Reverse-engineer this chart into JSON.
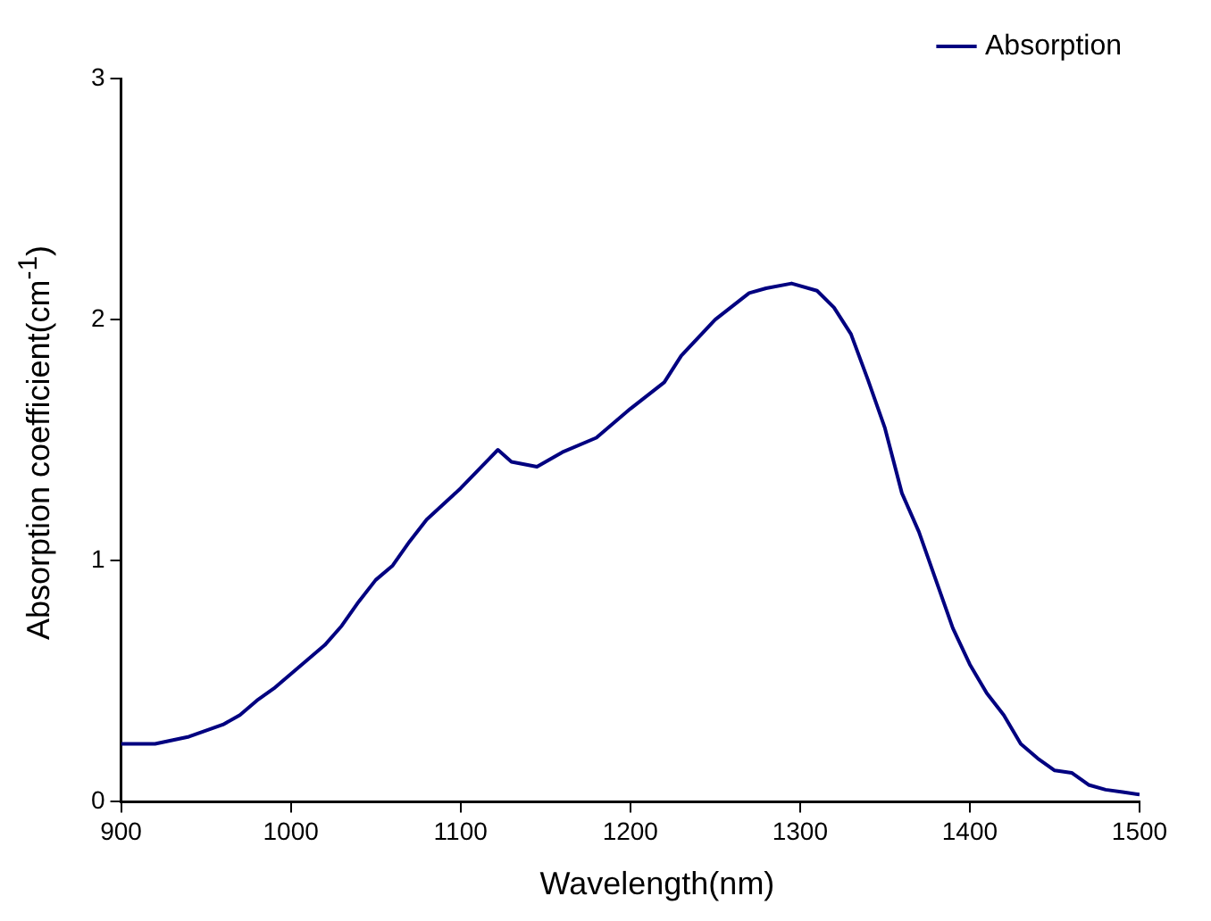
{
  "chart_data": {
    "type": "line",
    "xlabel": "Wavelength(nm)",
    "ylabel": "Absorption coefficient(cm$^{-1}$)",
    "xlim": [
      900,
      1500
    ],
    "xticks": [
      900,
      1000,
      1100,
      1200,
      1300,
      1400,
      1500
    ],
    "ylim": [
      0,
      3
    ],
    "yticks": [
      0,
      1,
      2,
      3
    ],
    "grid": false,
    "legend": "top right",
    "marker": "none",
    "line_style": "solid",
    "series": [
      {
        "name": "Absorption",
        "color": "#000080",
        "x": [
          900,
          920,
          940,
          960,
          970,
          980,
          990,
          1000,
          1010,
          1020,
          1030,
          1040,
          1050,
          1060,
          1070,
          1080,
          1100,
          1122,
          1130,
          1145,
          1160,
          1180,
          1200,
          1220,
          1230,
          1250,
          1270,
          1280,
          1295,
          1310,
          1320,
          1330,
          1340,
          1350,
          1360,
          1370,
          1380,
          1390,
          1400,
          1410,
          1420,
          1430,
          1440,
          1450,
          1460,
          1470,
          1480,
          1490,
          1500
        ],
        "values": [
          0.24,
          0.24,
          0.27,
          0.32,
          0.36,
          0.42,
          0.47,
          0.53,
          0.59,
          0.65,
          0.73,
          0.83,
          0.92,
          0.98,
          1.08,
          1.17,
          1.3,
          1.46,
          1.41,
          1.39,
          1.45,
          1.51,
          1.63,
          1.74,
          1.85,
          2.0,
          2.11,
          2.13,
          2.15,
          2.12,
          2.05,
          1.94,
          1.75,
          1.55,
          1.28,
          1.12,
          0.92,
          0.72,
          0.57,
          0.45,
          0.36,
          0.24,
          0.18,
          0.13,
          0.12,
          0.07,
          0.05,
          0.04,
          0.03
        ]
      }
    ]
  }
}
